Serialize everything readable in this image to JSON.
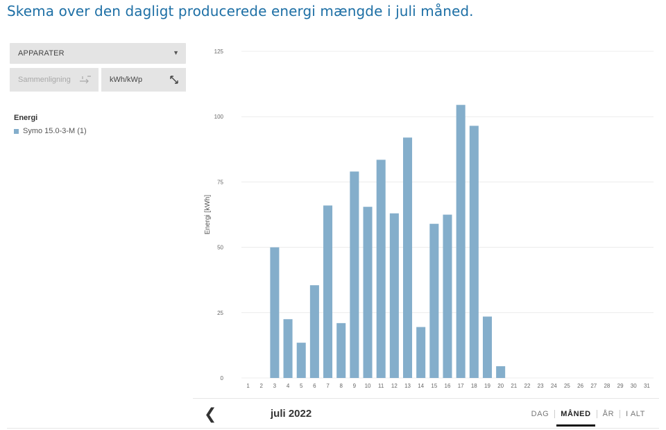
{
  "caption": "Skema over den dagligt producerede energi mængde i juli måned.",
  "controls": {
    "dropdown_label": "APPARATER",
    "compare_label": "Sammenligning",
    "unit_label": "kWh/kWp"
  },
  "legend": {
    "title": "Energi",
    "items": [
      {
        "label": "Symo 15.0-3-M (1)",
        "color": "#84aecb"
      }
    ]
  },
  "nav": {
    "period_label": "juli 2022",
    "tabs": [
      {
        "label": "DAG",
        "active": false
      },
      {
        "label": "MÅNED",
        "active": true
      },
      {
        "label": "ÅR",
        "active": false
      },
      {
        "label": "I ALT",
        "active": false
      }
    ]
  },
  "chart_data": {
    "type": "bar",
    "ylabel": "Energi [kWh]",
    "ylim": [
      0,
      125
    ],
    "yticks": [
      0,
      25,
      50,
      75,
      100,
      125
    ],
    "grid": true,
    "bar_color": "#84aecb",
    "categories": [
      "1",
      "2",
      "3",
      "4",
      "5",
      "6",
      "7",
      "8",
      "9",
      "10",
      "11",
      "12",
      "13",
      "14",
      "15",
      "16",
      "17",
      "18",
      "19",
      "20",
      "21",
      "22",
      "23",
      "24",
      "25",
      "26",
      "27",
      "28",
      "29",
      "30",
      "31"
    ],
    "values": [
      0,
      0,
      50,
      22.5,
      13.5,
      35.5,
      66,
      21,
      79,
      65.5,
      83.5,
      63,
      92,
      19.5,
      59,
      62.5,
      104.5,
      96.5,
      23.5,
      4.5,
      0,
      0,
      0,
      0,
      0,
      0,
      0,
      0,
      0,
      0,
      0
    ]
  }
}
